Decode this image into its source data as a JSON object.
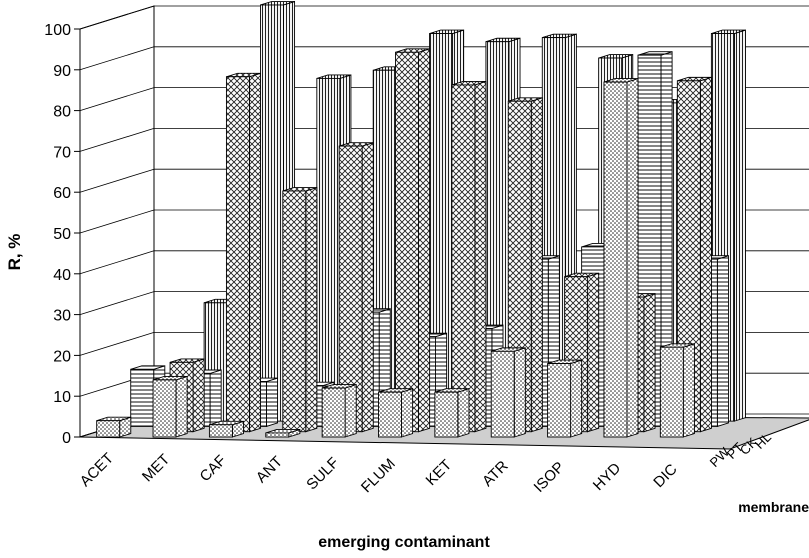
{
  "chart_data": {
    "type": "bar",
    "subtype": "3d-clustered-column",
    "xlabel": "emerging contaminant",
    "ylabel": "R, %",
    "zlabel": "membrane",
    "ylim": [
      0,
      100
    ],
    "yticks": [
      0,
      10,
      20,
      30,
      40,
      50,
      60,
      70,
      80,
      90,
      100
    ],
    "grid": true,
    "categories": [
      "ACET",
      "MET",
      "CAF",
      "ANT",
      "SULF",
      "FLUM",
      "KET",
      "ATR",
      "ISOP",
      "HYD",
      "DIC"
    ],
    "series": [
      {
        "name": "PW",
        "pattern": "dots",
        "values": [
          4,
          14,
          3,
          1,
          12,
          11,
          11,
          21,
          18,
          87,
          22
        ]
      },
      {
        "name": "PT",
        "pattern": "crosshatch",
        "values": [
          0,
          17,
          87,
          59,
          70,
          93,
          85,
          81,
          38,
          33,
          86
        ]
      },
      {
        "name": "CK",
        "pattern": "horizontal",
        "values": [
          14,
          13,
          11,
          10,
          28,
          22,
          24,
          41,
          44,
          91,
          41
        ]
      },
      {
        "name": "HL",
        "pattern": "vertical",
        "values": [
          0,
          29,
          102,
          84,
          86,
          95,
          93,
          94,
          89,
          78,
          95
        ]
      }
    ],
    "colors": {
      "bar_fill": "#ffffff",
      "pattern_ink": "#222222",
      "floor": "#cfcfcf",
      "grid": "#000000"
    }
  }
}
